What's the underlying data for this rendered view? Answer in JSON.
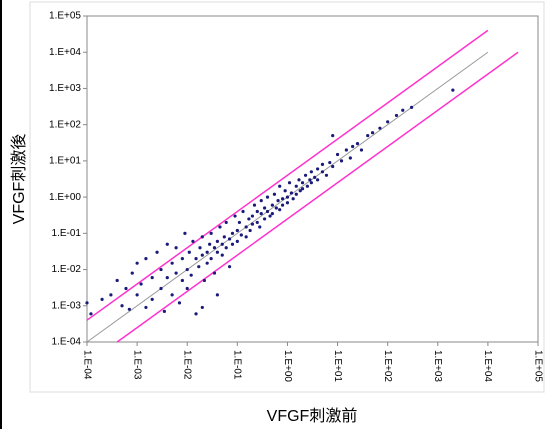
{
  "chart_data": {
    "type": "scatter",
    "x_label": "VFGF刺激前",
    "y_label": "VFGF刺激後",
    "log_x": true,
    "log_y": true,
    "color": "#1a1a7a",
    "xlim": [
      0.0001,
      100000
    ],
    "ylim": [
      0.0001,
      100000
    ],
    "xticks": [
      {
        "value": 0.0001,
        "label": "1.E-04"
      },
      {
        "value": 0.001,
        "label": "1.E-03"
      },
      {
        "value": 0.01,
        "label": "1.E-02"
      },
      {
        "value": 0.1,
        "label": "1.E-01"
      },
      {
        "value": 1,
        "label": "1.E+00"
      },
      {
        "value": 10,
        "label": "1.E+01"
      },
      {
        "value": 100,
        "label": "1.E+02"
      },
      {
        "value": 1000,
        "label": "1.E+03"
      },
      {
        "value": 10000,
        "label": "1.E+04"
      },
      {
        "value": 100000,
        "label": "1.E+05"
      }
    ],
    "yticks": [
      {
        "value": 0.0001,
        "label": "1.E-04"
      },
      {
        "value": 0.001,
        "label": "1.E-03"
      },
      {
        "value": 0.01,
        "label": "1.E-02"
      },
      {
        "value": 0.1,
        "label": "1.E-01"
      },
      {
        "value": 1,
        "label": "1.E+00"
      },
      {
        "value": 10,
        "label": "1.E+01"
      },
      {
        "value": 100,
        "label": "1.E+02"
      },
      {
        "value": 1000,
        "label": "1.E+03"
      },
      {
        "value": 10000,
        "label": "1.E+04"
      },
      {
        "value": 100000,
        "label": "1.E+05"
      }
    ],
    "lines": [
      {
        "color": "#999999",
        "x": [
          0.0001,
          10000
        ],
        "y": [
          0.0001,
          10000
        ]
      },
      {
        "color": "#ff33cc",
        "x": [
          0.0001,
          10000
        ],
        "y": [
          0.0004,
          40000
        ]
      },
      {
        "color": "#ff33cc",
        "x": [
          0.0004,
          40000
        ],
        "y": [
          0.0001,
          10000
        ]
      }
    ],
    "x": [
      0.0001,
      0.00012,
      0.0002,
      0.0003,
      0.0004,
      0.0005,
      0.0006,
      0.0007,
      0.0008,
      0.001,
      0.001,
      0.0012,
      0.0015,
      0.0015,
      0.002,
      0.002,
      0.0025,
      0.003,
      0.003,
      0.0035,
      0.004,
      0.004,
      0.005,
      0.005,
      0.006,
      0.006,
      0.007,
      0.008,
      0.008,
      0.009,
      0.01,
      0.01,
      0.011,
      0.012,
      0.013,
      0.015,
      0.015,
      0.017,
      0.018,
      0.02,
      0.02,
      0.022,
      0.025,
      0.025,
      0.028,
      0.03,
      0.03,
      0.035,
      0.035,
      0.04,
      0.04,
      0.045,
      0.05,
      0.05,
      0.055,
      0.06,
      0.06,
      0.07,
      0.07,
      0.08,
      0.08,
      0.09,
      0.1,
      0.1,
      0.11,
      0.12,
      0.13,
      0.15,
      0.15,
      0.17,
      0.18,
      0.2,
      0.2,
      0.22,
      0.25,
      0.25,
      0.28,
      0.3,
      0.3,
      0.35,
      0.35,
      0.4,
      0.4,
      0.45,
      0.5,
      0.5,
      0.55,
      0.6,
      0.65,
      0.7,
      0.7,
      0.8,
      0.8,
      0.9,
      1,
      1,
      1.1,
      1.2,
      1.3,
      1.5,
      1.5,
      1.7,
      1.8,
      2,
      2,
      2.3,
      2.5,
      2.8,
      3,
      3,
      3.5,
      4,
      4,
      5,
      5,
      6,
      7,
      8,
      10,
      12,
      15,
      18,
      20,
      25,
      30,
      40,
      50,
      70,
      100,
      150,
      200,
      300,
      2000,
      8,
      0.02,
      0.04
    ],
    "values": [
      0.0012,
      0.0006,
      0.0015,
      0.002,
      0.005,
      0.001,
      0.003,
      0.0008,
      0.008,
      0.002,
      0.015,
      0.004,
      0.0009,
      0.02,
      0.006,
      0.0015,
      0.03,
      0.003,
      0.01,
      0.0007,
      0.05,
      0.006,
      0.002,
      0.015,
      0.008,
      0.04,
      0.0012,
      0.02,
      0.005,
      0.1,
      0.01,
      0.003,
      0.03,
      0.007,
      0.06,
      0.02,
      0.0006,
      0.012,
      0.04,
      0.025,
      0.08,
      0.005,
      0.03,
      0.015,
      0.05,
      0.02,
      0.1,
      0.04,
      0.008,
      0.06,
      0.03,
      0.15,
      0.05,
      0.025,
      0.08,
      0.04,
      0.2,
      0.07,
      0.012,
      0.1,
      0.05,
      0.3,
      0.12,
      0.06,
      0.2,
      0.09,
      0.4,
      0.15,
      0.08,
      0.25,
      0.12,
      0.3,
      0.18,
      0.6,
      0.2,
      0.4,
      0.15,
      0.35,
      0.8,
      0.25,
      0.5,
      0.4,
      1,
      0.3,
      0.6,
      0.35,
      1.2,
      0.5,
      0.8,
      0.45,
      2,
      0.9,
      0.6,
      1.5,
      1,
      0.7,
      2.5,
      1.3,
      0.9,
      2,
      1.2,
      3,
      1.5,
      2.5,
      1.7,
      4,
      2,
      3,
      5,
      2.5,
      3.5,
      6,
      3,
      5,
      8,
      4,
      9,
      7,
      15,
      10,
      20,
      12,
      25,
      30,
      20,
      50,
      60,
      80,
      120,
      180,
      250,
      300,
      900,
      50,
      0.0009,
      0.002
    ]
  }
}
